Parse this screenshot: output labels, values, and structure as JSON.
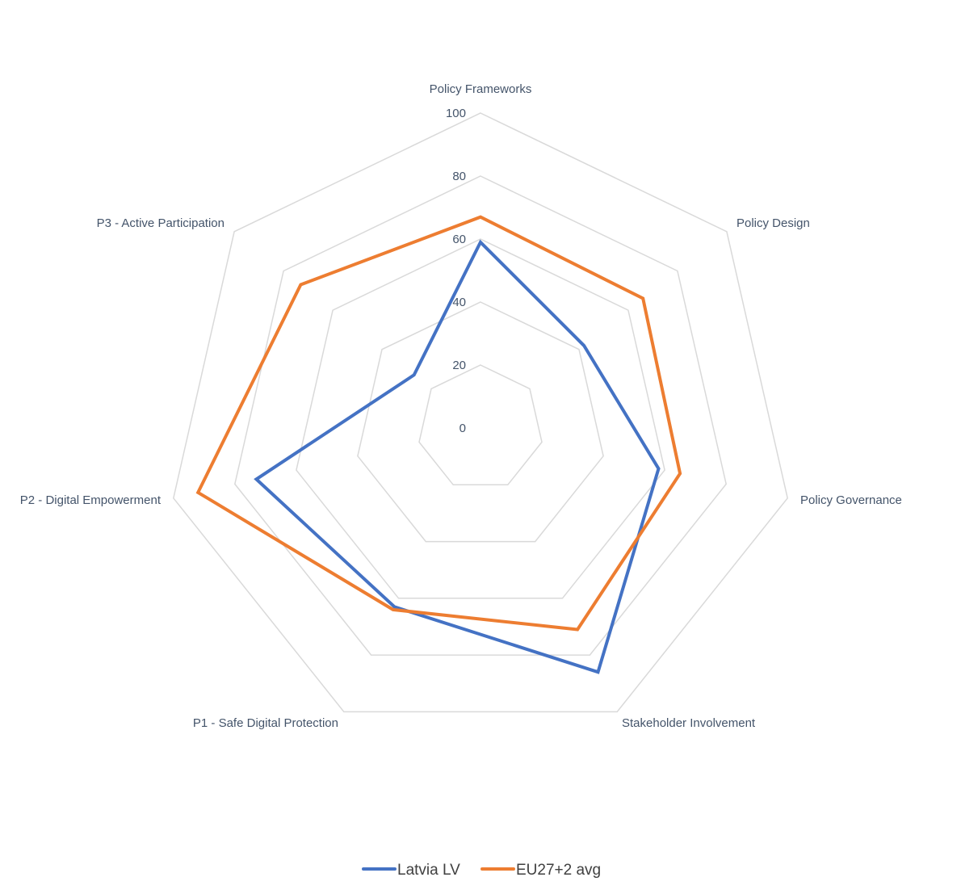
{
  "chart_data": {
    "type": "radar",
    "axes": [
      "Policy Frameworks",
      "Policy Design",
      "Policy Governance",
      "Stakeholder Involvement",
      "P1 - Safe Digital Protection",
      "P2 - Digital Empowerment",
      "P3 - Active Participation"
    ],
    "ticks": [
      "0",
      "20",
      "40",
      "60",
      "80",
      "100"
    ],
    "range": [
      0,
      100
    ],
    "series": [
      {
        "name": "Latvia LV",
        "color": "#4472c4",
        "values": [
          59,
          42,
          58,
          86,
          63,
          73,
          27
        ]
      },
      {
        "name": "EU27+2 avg",
        "color": "#ed7d31",
        "values": [
          67,
          66,
          65,
          71,
          64,
          92,
          73
        ]
      }
    ],
    "grid": true,
    "legend_position": "bottom"
  }
}
